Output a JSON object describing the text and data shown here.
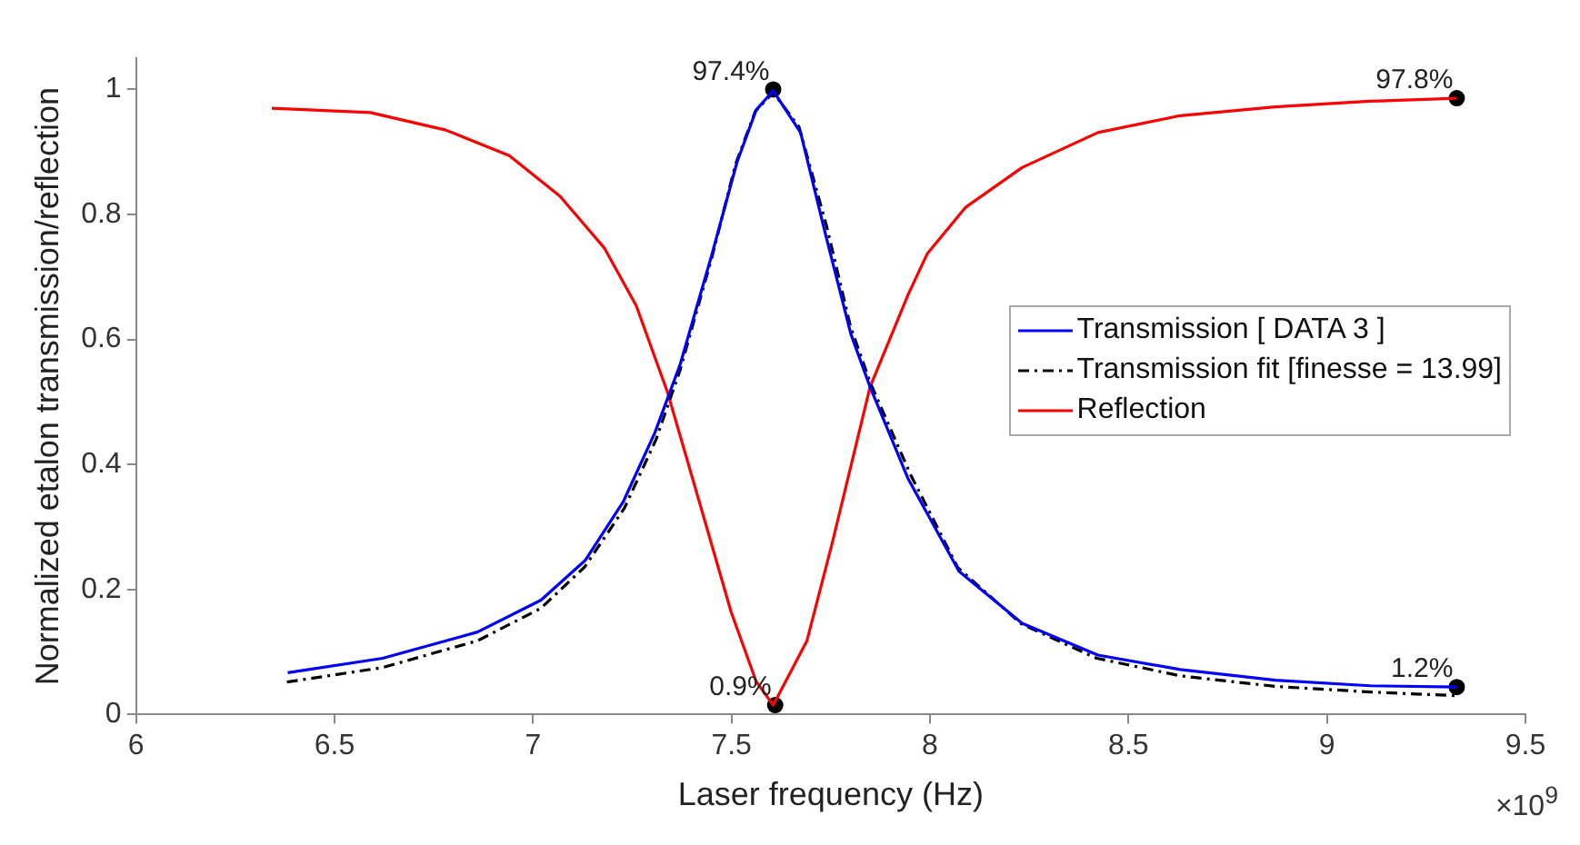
{
  "chart_data": {
    "type": "line",
    "xlabel": "Laser frequency (Hz)",
    "ylabel": "Normalized etalon transmission/reflection",
    "xlim": [
      6,
      9.5
    ],
    "xticks": [
      6,
      6.5,
      7,
      7.5,
      8,
      8.5,
      9,
      9.5
    ],
    "ylim": [
      0,
      1.05
    ],
    "yticks": [
      0,
      0.2,
      0.4,
      0.6,
      0.8,
      1
    ],
    "legend": "right",
    "series": [
      {
        "name": "Transmission [ DATA 3 ]",
        "color": "#0000ff",
        "line_style": "solid",
        "x": [
          6.382,
          6.621,
          6.86,
          7.02,
          7.132,
          7.227,
          7.307,
          7.371,
          7.451,
          7.514,
          7.562,
          7.605,
          7.674,
          7.738,
          7.801,
          7.849,
          7.945,
          8.073,
          8.232,
          8.423,
          8.63,
          8.87,
          9.109,
          9.327
        ],
        "values": [
          0.067,
          0.09,
          0.132,
          0.183,
          0.247,
          0.34,
          0.451,
          0.561,
          0.737,
          0.884,
          0.967,
          0.998,
          0.931,
          0.765,
          0.608,
          0.524,
          0.377,
          0.229,
          0.146,
          0.095,
          0.072,
          0.055,
          0.046,
          0.044
        ]
      },
      {
        "name": "Transmission fit [finesse = 13.99]",
        "color": "#000000",
        "line_style": "dashed",
        "x": [
          6.38,
          6.62,
          6.86,
          7.02,
          7.13,
          7.23,
          7.31,
          7.37,
          7.45,
          7.51,
          7.56,
          7.605,
          7.67,
          7.74,
          7.8,
          7.85,
          7.95,
          8.07,
          8.23,
          8.42,
          8.63,
          8.87,
          9.11,
          9.33
        ],
        "values": [
          0.052,
          0.075,
          0.118,
          0.17,
          0.236,
          0.33,
          0.44,
          0.55,
          0.73,
          0.88,
          0.965,
          0.995,
          0.94,
          0.78,
          0.62,
          0.53,
          0.385,
          0.235,
          0.145,
          0.09,
          0.062,
          0.045,
          0.036,
          0.03
        ]
      },
      {
        "name": "Reflection",
        "color": "#ff0000",
        "line_style": "solid",
        "x": [
          6.342,
          6.59,
          6.78,
          6.94,
          7.068,
          7.18,
          7.26,
          7.339,
          7.419,
          7.499,
          7.562,
          7.605,
          7.69,
          7.754,
          7.849,
          7.945,
          7.993,
          8.089,
          8.232,
          8.423,
          8.63,
          8.869,
          9.108,
          9.327
        ],
        "values": [
          0.97,
          0.963,
          0.935,
          0.894,
          0.829,
          0.746,
          0.654,
          0.515,
          0.34,
          0.164,
          0.053,
          0.015,
          0.118,
          0.275,
          0.524,
          0.672,
          0.737,
          0.811,
          0.875,
          0.931,
          0.958,
          0.972,
          0.981,
          0.986
        ]
      },
      {
        "type": "scatter",
        "color": "#000000",
        "marker": "circle",
        "x": [
          7.605,
          7.61,
          9.327,
          9.327
        ],
        "values": [
          1.0,
          0.015,
          0.986,
          0.044
        ]
      }
    ],
    "annotations": [
      {
        "text": "97.4%",
        "x": 7.605,
        "y": 1.0
      },
      {
        "text": "0.9%",
        "x": 7.61,
        "y": 0.015
      },
      {
        "text": "97.8%",
        "x": 9.327,
        "y": 0.986
      },
      {
        "text": "1.2%",
        "x": 9.327,
        "y": 0.044
      },
      "×10$^{9}$"
    ]
  }
}
